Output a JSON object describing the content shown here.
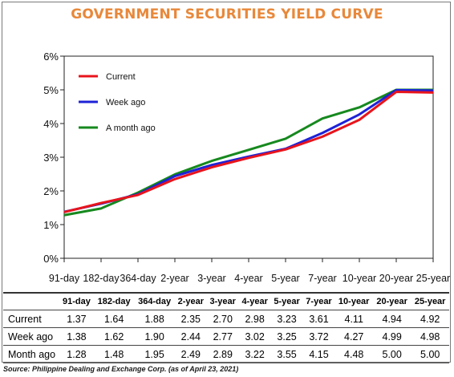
{
  "chart_data": {
    "type": "line",
    "title": "GOVERNMENT SECURITIES YIELD CURVE",
    "categories": [
      "91-day",
      "182-day",
      "364-day",
      "2-year",
      "3-year",
      "4-year",
      "5-year",
      "7-year",
      "10-year",
      "20-year",
      "25-year"
    ],
    "series": [
      {
        "name": "Current",
        "color": "#e8141c",
        "values": [
          1.37,
          1.64,
          1.88,
          2.35,
          2.7,
          2.98,
          3.23,
          3.61,
          4.11,
          4.94,
          4.92
        ]
      },
      {
        "name": "Week ago",
        "color": "#1e22d6",
        "values": [
          1.38,
          1.62,
          1.9,
          2.44,
          2.77,
          3.02,
          3.25,
          3.72,
          4.27,
          4.99,
          4.98
        ]
      },
      {
        "name": "A month ago",
        "color": "#16891e",
        "values": [
          1.28,
          1.48,
          1.95,
          2.49,
          2.89,
          3.22,
          3.55,
          4.15,
          4.48,
          5.0,
          5.0
        ]
      }
    ],
    "yticks": [
      "0%",
      "1%",
      "2%",
      "3%",
      "4%",
      "5%",
      "6%"
    ],
    "ylim": [
      0,
      6
    ],
    "legend_position": "top-left",
    "grid": false
  },
  "table": {
    "columns": [
      "91-day",
      "182-day",
      "364-day",
      "2-year",
      "3-year",
      "4-year",
      "5-year",
      "7-year",
      "10-year",
      "20-year",
      "25-year"
    ],
    "rows": [
      {
        "label": "Current",
        "values": [
          "1.37",
          "1.64",
          "1.88",
          "2.35",
          "2.70",
          "2.98",
          "3.23",
          "3.61",
          "4.11",
          "4.94",
          "4.92"
        ]
      },
      {
        "label": "Week ago",
        "values": [
          "1.38",
          "1.62",
          "1.90",
          "2.44",
          "2.77",
          "3.02",
          "3.25",
          "3.72",
          "4.27",
          "4.99",
          "4.98"
        ]
      },
      {
        "label": "Month ago",
        "values": [
          "1.28",
          "1.48",
          "1.95",
          "2.49",
          "2.89",
          "3.22",
          "3.55",
          "4.15",
          "4.48",
          "5.00",
          "5.00"
        ]
      }
    ]
  },
  "source": "Source: Philippine Dealing and Exchange Corp. (as of April 23, 2021)"
}
